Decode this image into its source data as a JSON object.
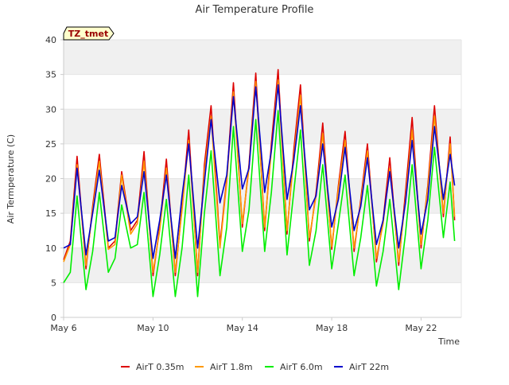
{
  "chart_data": {
    "type": "line",
    "title": "Air Temperature Profile",
    "xlabel": "Time",
    "ylabel": "Air Termperature (C)",
    "tag": "TZ_tmet",
    "ylim": [
      0,
      40
    ],
    "yticks": [
      0,
      5,
      10,
      15,
      20,
      25,
      30,
      35,
      40
    ],
    "xlim": [
      6,
      23.8
    ],
    "xticks": [
      {
        "value": 6,
        "label": "May 6"
      },
      {
        "value": 10,
        "label": "May 10"
      },
      {
        "value": 14,
        "label": "May 14"
      },
      {
        "value": 18,
        "label": "May 18"
      },
      {
        "value": 22,
        "label": "May 22"
      }
    ],
    "grid": true,
    "legend_position": "bottom",
    "x": [
      6.0,
      6.3,
      6.6,
      7.0,
      7.3,
      7.6,
      8.0,
      8.3,
      8.6,
      9.0,
      9.3,
      9.6,
      10.0,
      10.3,
      10.6,
      11.0,
      11.3,
      11.6,
      12.0,
      12.3,
      12.6,
      13.0,
      13.3,
      13.6,
      14.0,
      14.3,
      14.6,
      15.0,
      15.3,
      15.6,
      16.0,
      16.3,
      16.6,
      17.0,
      17.3,
      17.6,
      18.0,
      18.3,
      18.6,
      19.0,
      19.3,
      19.6,
      20.0,
      20.3,
      20.6,
      21.0,
      21.3,
      21.6,
      22.0,
      22.3,
      22.6,
      23.0,
      23.3,
      23.5
    ],
    "series": [
      {
        "name": "AirT 0.35m",
        "color": "#dd0000",
        "values": [
          8.3,
          11.0,
          23.2,
          7.0,
          16.0,
          23.5,
          10.0,
          11.0,
          21.0,
          12.5,
          14.0,
          23.9,
          6.0,
          13.0,
          22.8,
          6.0,
          16.0,
          27.0,
          6.0,
          22.0,
          30.5,
          10.5,
          20.0,
          33.8,
          13.0,
          22.0,
          35.2,
          12.5,
          25.0,
          35.7,
          12.0,
          24.0,
          33.5,
          11.0,
          18.0,
          28.0,
          9.8,
          19.0,
          26.8,
          9.5,
          17.0,
          25.0,
          8.0,
          14.0,
          23.0,
          7.5,
          18.0,
          28.8,
          10.0,
          19.0,
          30.5,
          14.5,
          26.0,
          14.0
        ]
      },
      {
        "name": "AirT 1.8m",
        "color": "#ff9900",
        "values": [
          8.0,
          10.5,
          22.0,
          7.5,
          15.5,
          22.5,
          9.8,
          10.5,
          20.5,
          12.0,
          13.5,
          22.5,
          6.5,
          12.5,
          21.5,
          6.5,
          15.5,
          25.5,
          6.5,
          21.0,
          29.0,
          10.0,
          19.5,
          32.5,
          13.5,
          21.5,
          34.0,
          13.0,
          24.0,
          34.2,
          12.5,
          23.0,
          32.0,
          11.5,
          17.5,
          26.5,
          10.2,
          18.5,
          25.5,
          10.0,
          16.5,
          24.0,
          8.5,
          13.5,
          21.5,
          8.0,
          17.0,
          27.0,
          10.5,
          18.5,
          29.0,
          15.0,
          25.0,
          14.5
        ]
      },
      {
        "name": "AirT 6.0m",
        "color": "#00ee00",
        "values": [
          5.0,
          6.5,
          17.5,
          4.0,
          9.5,
          18.0,
          6.5,
          8.5,
          16.2,
          10.0,
          10.5,
          18.0,
          3.0,
          9.0,
          17.0,
          3.0,
          10.0,
          20.5,
          3.0,
          15.0,
          24.0,
          6.0,
          13.0,
          27.5,
          9.5,
          15.5,
          28.5,
          9.5,
          18.0,
          29.8,
          9.0,
          18.0,
          27.0,
          7.5,
          12.5,
          22.0,
          7.0,
          13.5,
          20.5,
          6.0,
          11.5,
          19.0,
          4.5,
          9.5,
          17.0,
          4.0,
          12.0,
          22.0,
          7.0,
          14.0,
          24.5,
          11.5,
          19.5,
          11.0
        ]
      },
      {
        "name": "AirT 22m",
        "color": "#0000cc",
        "values": [
          10.0,
          10.5,
          21.5,
          9.0,
          15.0,
          21.2,
          11.0,
          11.5,
          19.0,
          13.5,
          14.5,
          21.0,
          8.5,
          14.0,
          20.5,
          8.5,
          17.5,
          25.0,
          10.0,
          19.5,
          28.5,
          16.5,
          20.5,
          31.8,
          18.5,
          21.5,
          33.2,
          18.0,
          24.0,
          33.5,
          17.0,
          22.5,
          30.5,
          15.5,
          17.5,
          25.0,
          13.0,
          17.0,
          24.5,
          12.5,
          16.0,
          23.0,
          10.5,
          14.0,
          21.0,
          10.0,
          16.5,
          25.5,
          12.0,
          17.0,
          27.5,
          17.0,
          23.5,
          19.0
        ]
      }
    ]
  },
  "colors": {
    "band": "#f0f0f0",
    "axis": "#cccccc",
    "text": "#333333",
    "tag_fill": "#ffffcc",
    "tag_text": "#990000"
  }
}
